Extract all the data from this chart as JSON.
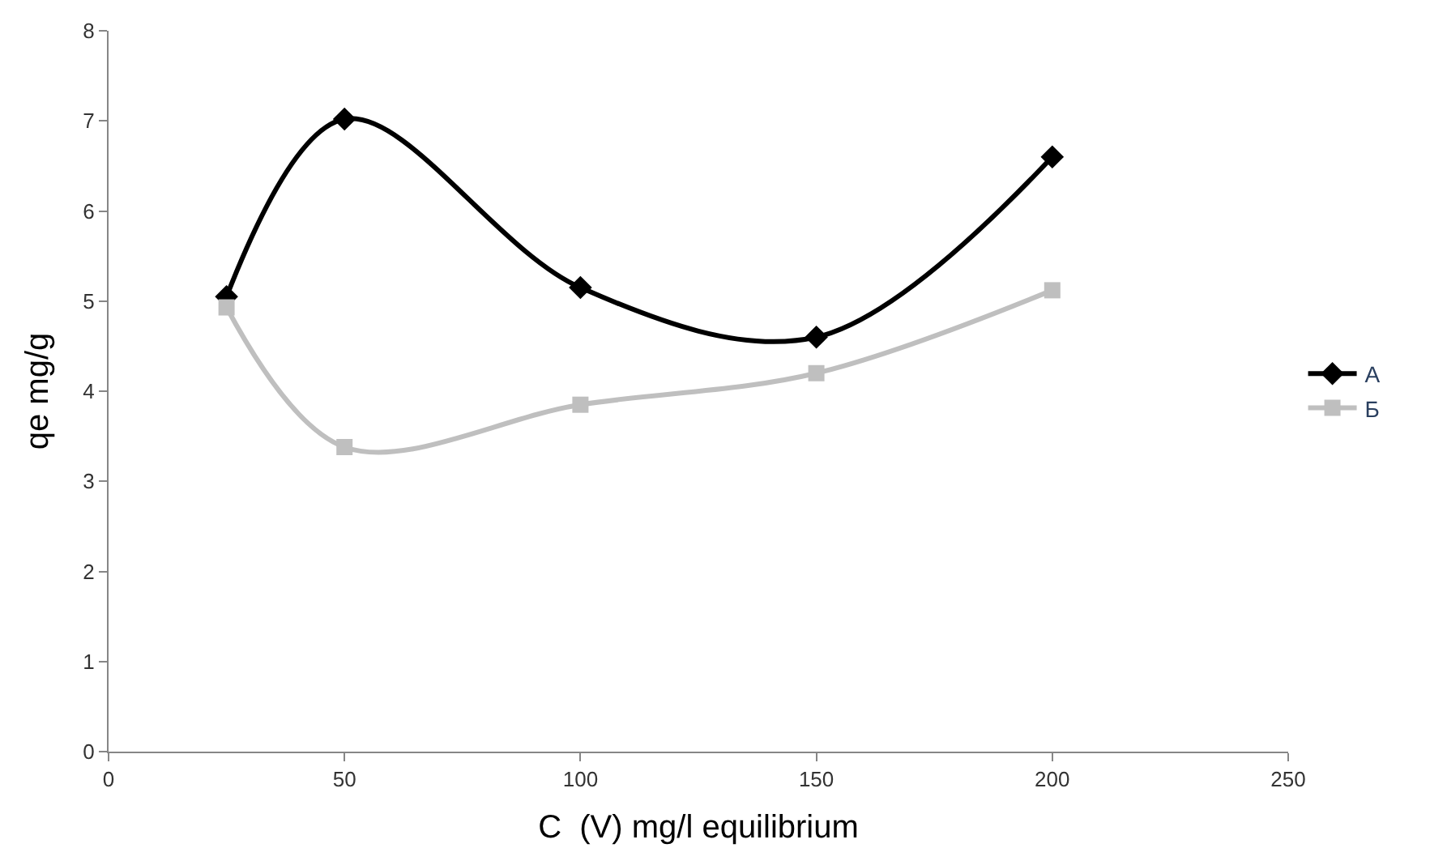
{
  "chart_data": {
    "type": "line",
    "xlabel": "C  (V) mg/l equilibrium",
    "ylabel": "qe mg/g",
    "x": [
      25,
      50,
      100,
      150,
      200
    ],
    "series": [
      {
        "name": "А",
        "color": "#000000",
        "marker": "diamond",
        "values": [
          5.05,
          7.02,
          5.15,
          4.6,
          6.6
        ]
      },
      {
        "name": "Б",
        "color": "#bfbfbf",
        "marker": "square",
        "values": [
          4.93,
          3.38,
          3.85,
          4.2,
          5.12
        ]
      }
    ],
    "xlim": [
      0,
      250
    ],
    "xticks": [
      0,
      50,
      100,
      150,
      200,
      250
    ],
    "ylim": [
      0,
      8
    ],
    "yticks": [
      0,
      1,
      2,
      3,
      4,
      5,
      6,
      7,
      8
    ],
    "legend": "right",
    "grid": false,
    "line_style": "solid"
  }
}
